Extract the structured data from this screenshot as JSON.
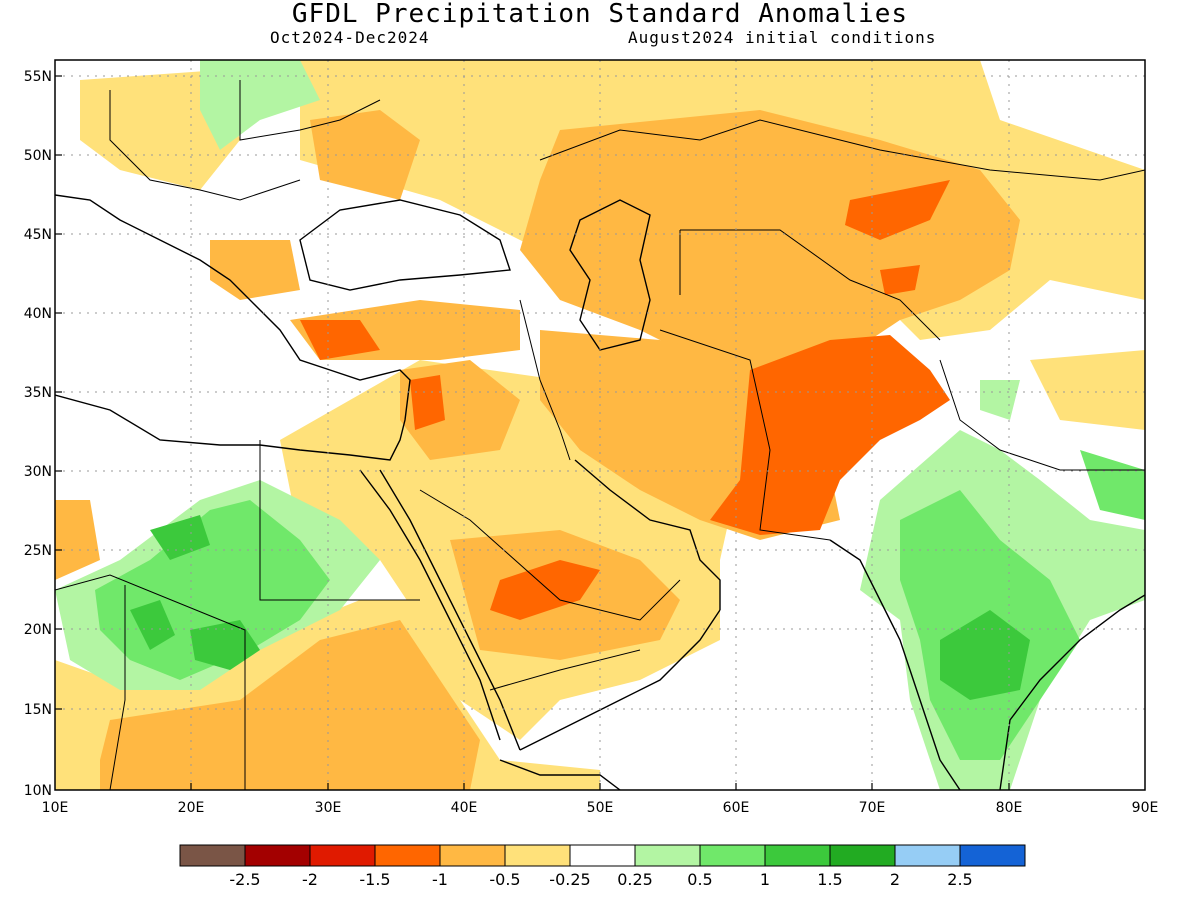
{
  "title": "GFDL Precipitation Standard Anomalies",
  "subtitle_left": "Oct2024-Dec2024",
  "subtitle_right": "August2024 initial conditions",
  "lat_labels": [
    "55N",
    "50N",
    "45N",
    "40N",
    "35N",
    "30N",
    "25N",
    "20N",
    "15N",
    "10N"
  ],
  "lon_labels": [
    "10E",
    "20E",
    "30E",
    "40E",
    "50E",
    "60E",
    "70E",
    "80E",
    "90E"
  ],
  "colorbar": {
    "colors": [
      "#7a5546",
      "#a30000",
      "#e01a00",
      "#ff6600",
      "#ffb843",
      "#ffe17a",
      "#ffffff",
      "#b3f5a3",
      "#70e86a",
      "#3cc93c",
      "#22ab22",
      "#96cdf5",
      "#1463d6"
    ],
    "tick_labels": [
      "-2.5",
      "-2",
      "-1.5",
      "-1",
      "-0.5",
      "-0.25",
      "0.25",
      "0.5",
      "1",
      "1.5",
      "2",
      "2.5"
    ]
  },
  "legend_colors": {
    "dry_moderate": "#ffb843",
    "dry_strong": "#ff6600",
    "dry_weak": "#ffe17a",
    "wet_weak": "#b3f5a3",
    "wet_moderate": "#70e86a",
    "wet_strong": "#3cc93c"
  }
}
